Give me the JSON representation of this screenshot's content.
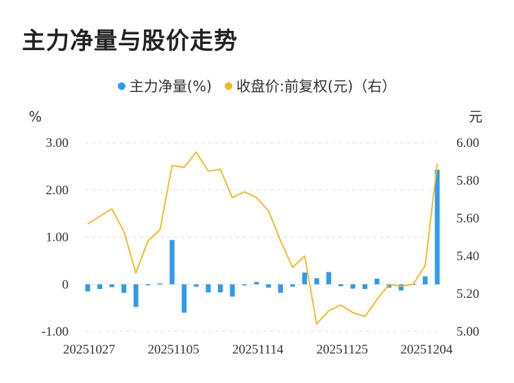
{
  "title": "主力净量与股价走势",
  "legend": [
    {
      "label": "主力净量(%)",
      "color": "#2e9bef"
    },
    {
      "label": "收盘价:前复权(元)（右）",
      "color": "#f5b922"
    }
  ],
  "chart_data": {
    "type": "bar",
    "left_unit": "%",
    "right_unit": "元",
    "x_tick_labels": [
      "20251027",
      "20251105",
      "20251114",
      "20251125",
      "20251204"
    ],
    "x_tick_indices": [
      0,
      7,
      14,
      21,
      28
    ],
    "left_ticks": [
      "3.00",
      "2.00",
      "1.00",
      "0",
      "-1.00"
    ],
    "right_ticks": [
      "6.00",
      "5.80",
      "5.60",
      "5.40",
      "5.20",
      "5.00"
    ],
    "ylim_left": [
      -1.0,
      3.0
    ],
    "ylim_right": [
      5.0,
      6.0
    ],
    "grid": true,
    "series": [
      {
        "name": "主力净量(%)",
        "type": "bar",
        "axis": "left",
        "color": "#2e9bef",
        "values": [
          -0.15,
          -0.1,
          -0.06,
          -0.18,
          -0.48,
          -0.02,
          0.02,
          0.94,
          -0.6,
          -0.05,
          -0.17,
          -0.17,
          -0.26,
          -0.01,
          0.05,
          -0.07,
          -0.18,
          -0.05,
          0.25,
          0.13,
          0.26,
          -0.04,
          -0.09,
          -0.1,
          0.12,
          -0.07,
          -0.13,
          0.01,
          0.17,
          2.43
        ]
      },
      {
        "name": "收盘价:前复权(元)（右）",
        "type": "line",
        "axis": "right",
        "color": "#f5b922",
        "values": [
          5.57,
          5.61,
          5.65,
          5.53,
          5.31,
          5.48,
          5.54,
          5.88,
          5.87,
          5.95,
          5.85,
          5.86,
          5.71,
          5.74,
          5.71,
          5.64,
          5.48,
          5.34,
          5.4,
          5.04,
          5.11,
          5.14,
          5.1,
          5.08,
          5.17,
          5.25,
          5.24,
          5.25,
          5.35,
          5.89
        ]
      }
    ]
  }
}
